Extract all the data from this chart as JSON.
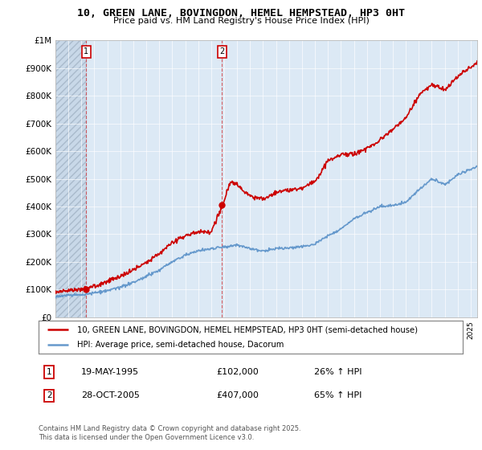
{
  "title": "10, GREEN LANE, BOVINGDON, HEMEL HEMPSTEAD, HP3 0HT",
  "subtitle": "Price paid vs. HM Land Registry's House Price Index (HPI)",
  "legend_line1": "10, GREEN LANE, BOVINGDON, HEMEL HEMPSTEAD, HP3 0HT (semi-detached house)",
  "legend_line2": "HPI: Average price, semi-detached house, Dacorum",
  "footnote": "Contains HM Land Registry data © Crown copyright and database right 2025.\nThis data is licensed under the Open Government Licence v3.0.",
  "purchase1_date": "19-MAY-1995",
  "purchase1_price": 102000,
  "purchase1_hpi": "26% ↑ HPI",
  "purchase1_year": 1995.38,
  "purchase2_date": "28-OCT-2005",
  "purchase2_price": 407000,
  "purchase2_hpi": "65% ↑ HPI",
  "purchase2_year": 2005.82,
  "red_color": "#cc0000",
  "blue_color": "#6699cc",
  "bg_blue": "#dce9f5",
  "bg_hatch": "#c8d8e8",
  "ylim": [
    0,
    1000000
  ],
  "xlim_start": 1993,
  "xlim_end": 2025.5,
  "hpi_knots": {
    "years": [
      1993,
      1994,
      1995,
      1996,
      1997,
      1998,
      1999,
      2000,
      2001,
      2002,
      2003,
      2004,
      2005,
      2006,
      2007,
      2008,
      2009,
      2010,
      2011,
      2012,
      2013,
      2014,
      2015,
      2016,
      2017,
      2018,
      2019,
      2020,
      2021,
      2022,
      2023,
      2024,
      2025.5
    ],
    "prices": [
      75000,
      78000,
      82000,
      88000,
      95000,
      108000,
      125000,
      148000,
      170000,
      200000,
      225000,
      240000,
      248000,
      255000,
      260000,
      250000,
      238000,
      248000,
      250000,
      255000,
      265000,
      295000,
      320000,
      355000,
      380000,
      400000,
      405000,
      415000,
      460000,
      500000,
      480000,
      515000,
      545000
    ]
  },
  "red_knots": {
    "years": [
      1993,
      1994,
      1995,
      1996,
      1997,
      1998,
      1999,
      2000,
      2001,
      2002,
      2003,
      2004,
      2005,
      2005.9,
      2006.5,
      2007,
      2007.5,
      2008,
      2009,
      2010,
      2011,
      2012,
      2013,
      2014,
      2015,
      2016,
      2017,
      2018,
      2019,
      2020,
      2021,
      2022,
      2023,
      2024,
      2025.5
    ],
    "prices": [
      90000,
      95000,
      102000,
      112000,
      128000,
      148000,
      170000,
      198000,
      230000,
      270000,
      295000,
      308000,
      310000,
      407000,
      490000,
      480000,
      455000,
      440000,
      425000,
      450000,
      460000,
      470000,
      490000,
      565000,
      590000,
      590000,
      610000,
      640000,
      680000,
      720000,
      800000,
      840000,
      820000,
      870000,
      920000
    ]
  }
}
